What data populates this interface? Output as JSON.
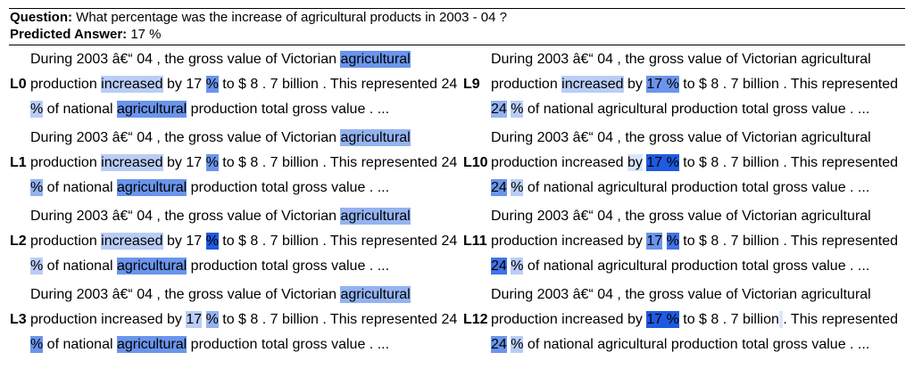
{
  "header": {
    "question_label": "Question:",
    "question_text": " What percentage was the increase of agricultural products in 2003 - 04 ?",
    "answer_label": "Predicted Answer:",
    "answer_text": " 17 %"
  },
  "colors": {
    "h0": "transparent",
    "h1": "#dbe5fa",
    "h2": "#b9cdf6",
    "h3": "#94b3f0",
    "h4": "#6b95ec",
    "h5": "#3f74e6",
    "h6": "#1f5ae2"
  },
  "panels": [
    {
      "label": "L0",
      "lines": [
        [
          [
            "During 2003 â€“ 04 , the gross value of Victorian ",
            0
          ],
          [
            "agricultural",
            4
          ]
        ],
        [
          [
            "production ",
            0
          ],
          [
            "increased",
            2
          ],
          [
            " by 17 ",
            0
          ],
          [
            "%",
            4
          ],
          [
            " to $ 8 . 7 billion . This represented 24",
            0
          ]
        ],
        [
          [
            "%",
            2
          ],
          [
            " of national ",
            0
          ],
          [
            "agricultural",
            4
          ],
          [
            " production total gross value . ...",
            0
          ]
        ]
      ]
    },
    {
      "label": "L1",
      "lines": [
        [
          [
            "During 2003 â€“ 04 , the gross value of Victorian ",
            0
          ],
          [
            "agricultural",
            3
          ]
        ],
        [
          [
            "production ",
            0
          ],
          [
            "increased",
            2
          ],
          [
            " by 17 ",
            0
          ],
          [
            "%",
            4
          ],
          [
            " to $ 8 . 7 billion . This represented 24",
            0
          ]
        ],
        [
          [
            "%",
            3
          ],
          [
            " of national ",
            0
          ],
          [
            "agricultural",
            4
          ],
          [
            " production total gross value . ...",
            0
          ]
        ]
      ]
    },
    {
      "label": "L2",
      "lines": [
        [
          [
            "During 2003 â€“ 04 , the gross value of Victorian ",
            0
          ],
          [
            "agricultural",
            3
          ]
        ],
        [
          [
            "production ",
            0
          ],
          [
            "increased",
            2
          ],
          [
            " by 17 ",
            0
          ],
          [
            "%",
            6
          ],
          [
            " to $ 8 . 7 billion . This represented 24",
            0
          ]
        ],
        [
          [
            "%",
            2
          ],
          [
            " of national ",
            0
          ],
          [
            "agricultural",
            4
          ],
          [
            " production total gross value . ...",
            0
          ]
        ]
      ]
    },
    {
      "label": "L3",
      "lines": [
        [
          [
            "During 2003 â€“ 04 , the gross value of Victorian ",
            0
          ],
          [
            "agricultural",
            3
          ]
        ],
        [
          [
            "production increased by ",
            0
          ],
          [
            "17",
            2
          ],
          [
            " ",
            0
          ],
          [
            "%",
            3
          ],
          [
            " to $ 8 . 7 billion . This represented 24",
            0
          ]
        ],
        [
          [
            "%",
            4
          ],
          [
            " of national ",
            0
          ],
          [
            "agricultural",
            4
          ],
          [
            " production total gross value . ...",
            0
          ]
        ]
      ]
    },
    {
      "label": "L9",
      "lines": [
        [
          [
            "During 2003 â€“ 04 , the gross value of Victorian agricultural",
            0
          ]
        ],
        [
          [
            "production ",
            0
          ],
          [
            "increased",
            2
          ],
          [
            " by ",
            0
          ],
          [
            "17 %",
            4
          ],
          [
            " to $ 8 . 7 billion . This represented",
            0
          ]
        ],
        [
          [
            "24",
            3
          ],
          [
            " ",
            0
          ],
          [
            "%",
            2
          ],
          [
            " of national agricultural production total gross value . ...",
            0
          ]
        ]
      ]
    },
    {
      "label": "L10",
      "lines": [
        [
          [
            "During 2003 â€“ 04 , the gross value of Victorian agricultural",
            0
          ]
        ],
        [
          [
            "production increased ",
            0
          ],
          [
            "by",
            1
          ],
          [
            " ",
            0
          ],
          [
            "17 %",
            6
          ],
          [
            " to $ 8 . 7 billion . This represented",
            0
          ]
        ],
        [
          [
            "24",
            4
          ],
          [
            " ",
            0
          ],
          [
            "%",
            2
          ],
          [
            " of national agricultural production total gross value . ...",
            0
          ]
        ]
      ]
    },
    {
      "label": "L11",
      "lines": [
        [
          [
            "During 2003 â€“ 04 , the gross value of Victorian agricultural",
            0
          ]
        ],
        [
          [
            "production increased by ",
            0
          ],
          [
            "17",
            4
          ],
          [
            " ",
            0
          ],
          [
            "%",
            5
          ],
          [
            " to $ 8 . 7 billion . This represented",
            0
          ]
        ],
        [
          [
            "24",
            5
          ],
          [
            " ",
            0
          ],
          [
            "%",
            2
          ],
          [
            " of national agricultural production total gross value . ...",
            0
          ]
        ]
      ]
    },
    {
      "label": "L12",
      "lines": [
        [
          [
            "During 2003 â€“ 04 , the gross value of Victorian agricultural",
            0
          ]
        ],
        [
          [
            "production increased by ",
            0
          ],
          [
            "17 %",
            6
          ],
          [
            " to $ 8 . 7 billion",
            0
          ],
          [
            " ",
            1
          ],
          [
            ". This represented",
            0
          ]
        ],
        [
          [
            "24",
            4
          ],
          [
            " ",
            0
          ],
          [
            "%",
            2
          ],
          [
            " of national agricultural production total gross value . ...",
            0
          ]
        ]
      ]
    }
  ]
}
